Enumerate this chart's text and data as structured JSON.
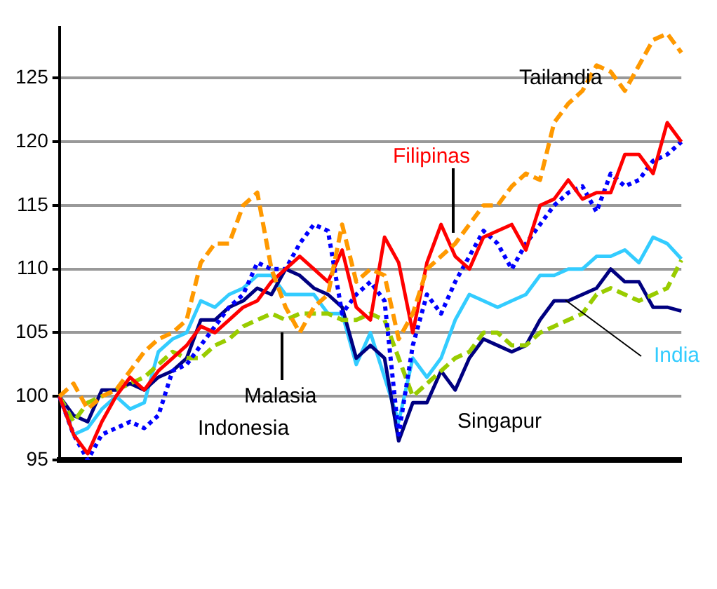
{
  "chart_data": {
    "type": "line",
    "categories": [
      null,
      null,
      null,
      null,
      null,
      null,
      null,
      null,
      null,
      null,
      null,
      null,
      null,
      null,
      null,
      null,
      null,
      null,
      null,
      null,
      null,
      null,
      null,
      null,
      null,
      null,
      null,
      null,
      null,
      null,
      null,
      null,
      null,
      null,
      null,
      null,
      null,
      null,
      null,
      null,
      null,
      null,
      null,
      null,
      null
    ],
    "ylim": [
      95,
      129
    ],
    "yticks": [
      95,
      100,
      105,
      110,
      115,
      120,
      125
    ],
    "grid": "y",
    "legend": false,
    "marker": "none",
    "series": [
      {
        "name": "Tailandia",
        "color": "#ff9900",
        "line_style": "dashed",
        "values": [
          100,
          101,
          99,
          100,
          100.5,
          102,
          103.5,
          104.5,
          105,
          106,
          110.5,
          112,
          112,
          115,
          116,
          110,
          107,
          105,
          107,
          108,
          113.5,
          109,
          110,
          109.5,
          104.5,
          106.5,
          110,
          111,
          112,
          113.5,
          115,
          115,
          116.5,
          117.5,
          117,
          121.5,
          123,
          124,
          126,
          125.5,
          124,
          126,
          128,
          128.5,
          127
        ]
      },
      {
        "name": "Filipinas",
        "color": "#ff0000",
        "line_style": "solid",
        "values": [
          100,
          97,
          95.5,
          98,
          100,
          101.5,
          100.5,
          102,
          103,
          104,
          105.5,
          105,
          106,
          107,
          107.5,
          109,
          110,
          111,
          110,
          109,
          111.5,
          107,
          106,
          112.5,
          110.5,
          105,
          110.5,
          113.5,
          111,
          110,
          112.5,
          113,
          113.5,
          111.5,
          115,
          115.5,
          117,
          115.5,
          116,
          116,
          119,
          119,
          117.5,
          121.5,
          120
        ]
      },
      {
        "name": "Indonesia",
        "color": "#0000ff",
        "line_style": "dotted",
        "values": [
          100,
          97,
          95,
          97,
          97.5,
          98,
          97.5,
          98.5,
          102,
          102.5,
          104,
          105.5,
          107,
          108,
          110.5,
          110,
          110,
          112,
          113.5,
          113,
          106.5,
          108,
          109,
          107.5,
          97,
          104,
          108,
          106.5,
          109,
          111,
          113,
          112,
          110,
          112,
          113.5,
          115,
          116,
          116.5,
          114.5,
          117.5,
          116.5,
          117,
          118.5,
          119,
          120
        ]
      },
      {
        "name": "Malasia",
        "color": "#99cc00",
        "line_style": "dashed",
        "values": [
          100,
          98,
          99.5,
          100,
          100.5,
          101,
          101.5,
          102.5,
          103.5,
          103,
          103,
          104,
          104.5,
          105.5,
          106,
          106.5,
          106,
          106.5,
          106.5,
          106.5,
          106,
          106,
          106.5,
          106,
          103,
          100,
          101,
          102,
          103,
          103.5,
          105,
          105,
          104,
          104,
          105,
          105.5,
          106,
          106.5,
          108,
          108.5,
          108,
          107.5,
          108,
          108.5,
          110.7
        ]
      },
      {
        "name": "Singapur",
        "color": "#000080",
        "line_style": "solid",
        "values": [
          100,
          98.5,
          98,
          100.5,
          100.5,
          101,
          100.5,
          101.5,
          102,
          103,
          106,
          106,
          107,
          107.5,
          108.5,
          108,
          110,
          109.5,
          108.5,
          108,
          107,
          103,
          104,
          103,
          96.5,
          99.5,
          99.5,
          102,
          100.5,
          103,
          104.5,
          104,
          103.5,
          104,
          106,
          107.5,
          107.5,
          108,
          108.5,
          110,
          109,
          109,
          107,
          107,
          106.7
        ]
      },
      {
        "name": "India",
        "color": "#33ccff",
        "line_style": "solid",
        "values": [
          100,
          97,
          97.5,
          99,
          100,
          99,
          99.5,
          103.5,
          104.5,
          105,
          107.5,
          107,
          108,
          108.5,
          109.5,
          109.5,
          108,
          108,
          108,
          106.5,
          106.5,
          102.5,
          105,
          101.5,
          98,
          103,
          101.5,
          103,
          106,
          108,
          107.5,
          107,
          107.5,
          108,
          109.5,
          109.5,
          110,
          110,
          111,
          111,
          111.5,
          110.5,
          112.5,
          112,
          110.8
        ]
      }
    ]
  }
}
